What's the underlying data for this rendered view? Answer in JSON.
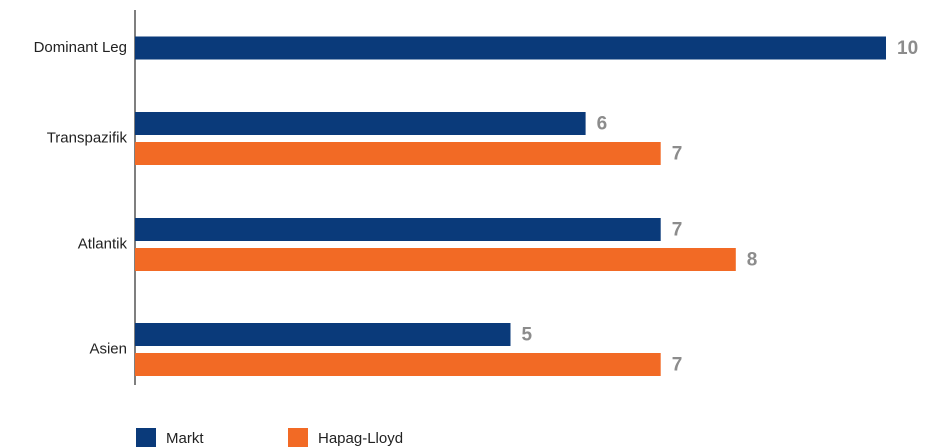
{
  "chart_data": {
    "type": "barh",
    "categories": [
      "Dominant Leg",
      "Transpazifik",
      "Atlantik",
      "Asien"
    ],
    "series": [
      {
        "name": "Markt",
        "color": "#0a3a7a",
        "values": [
          10,
          6,
          7,
          5
        ]
      },
      {
        "name": "Hapag-Lloyd",
        "color": "#f26a25",
        "values": [
          null,
          7,
          8,
          7
        ]
      }
    ],
    "xlim": [
      0,
      10
    ]
  }
}
